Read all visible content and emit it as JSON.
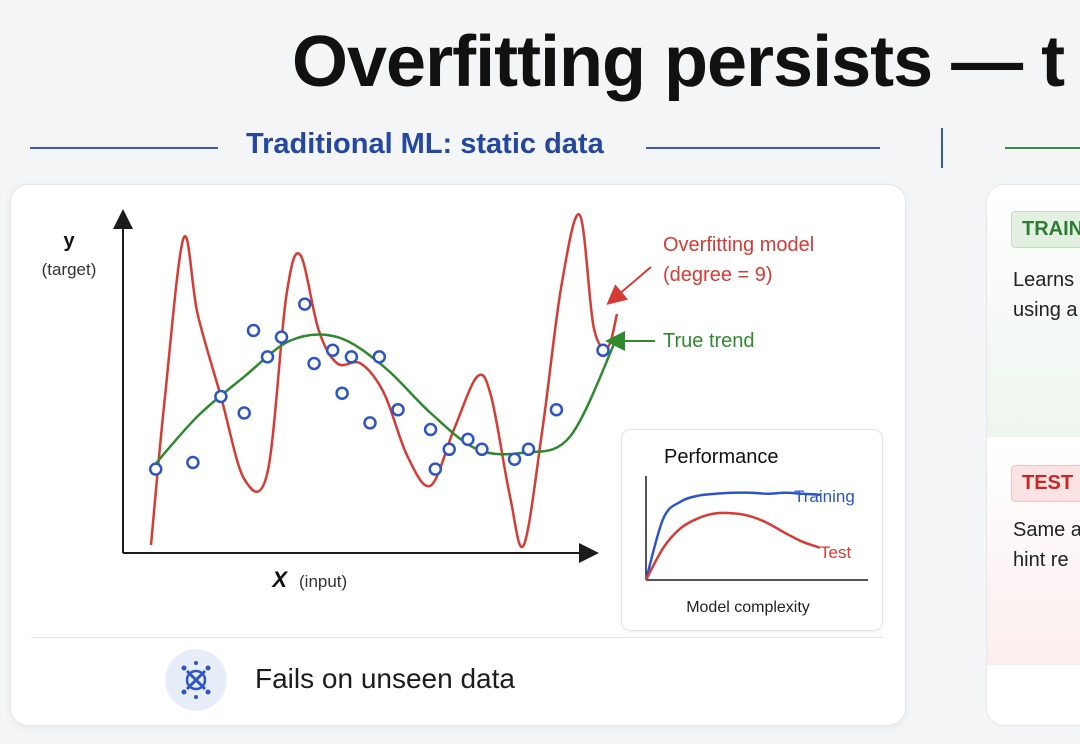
{
  "header": {
    "title": "Overfitting persists — t"
  },
  "left_section": {
    "heading": "Traditional ML: static data",
    "footer_text": "Fails on unseen data",
    "footer_icon": "scatter-x-icon"
  },
  "right_section": {
    "train_badge": "TRAIN",
    "train_line1": "Learns",
    "train_line2": "using a",
    "test_badge": "TEST",
    "test_line1": "Same a",
    "test_line2": "hint re"
  },
  "colors": {
    "overfit": "#d83a34",
    "trend": "#2f8a2f",
    "heading_blue": "#2447a0",
    "training_curve": "#2d55c8",
    "test_curve": "#d83a34"
  },
  "chart_data": [
    {
      "type": "scatter",
      "title": "",
      "xlabel": "X",
      "xlabel_note": "(input)",
      "ylabel": "y",
      "ylabel_note": "(target)",
      "annotations": {
        "overfit_line1": "Overfitting model",
        "overfit_line2": "(degree = 9)",
        "trend": "True trend"
      },
      "xlim": [
        0,
        10
      ],
      "ylim": [
        0,
        10
      ],
      "points": [
        {
          "x": 0.1,
          "y": 2.3
        },
        {
          "x": 0.9,
          "y": 2.5
        },
        {
          "x": 1.5,
          "y": 4.5
        },
        {
          "x": 2.0,
          "y": 4.0
        },
        {
          "x": 2.2,
          "y": 6.5
        },
        {
          "x": 2.5,
          "y": 5.7
        },
        {
          "x": 2.8,
          "y": 6.3
        },
        {
          "x": 3.3,
          "y": 7.3
        },
        {
          "x": 3.5,
          "y": 5.5
        },
        {
          "x": 3.9,
          "y": 5.9
        },
        {
          "x": 4.1,
          "y": 4.6
        },
        {
          "x": 4.3,
          "y": 5.7
        },
        {
          "x": 4.7,
          "y": 3.7
        },
        {
          "x": 4.9,
          "y": 5.7
        },
        {
          "x": 5.3,
          "y": 4.1
        },
        {
          "x": 6.0,
          "y": 3.5
        },
        {
          "x": 6.1,
          "y": 2.3
        },
        {
          "x": 6.4,
          "y": 2.9
        },
        {
          "x": 6.8,
          "y": 3.2
        },
        {
          "x": 7.1,
          "y": 2.9
        },
        {
          "x": 7.8,
          "y": 2.6
        },
        {
          "x": 8.1,
          "y": 2.9
        },
        {
          "x": 8.7,
          "y": 4.1
        },
        {
          "x": 9.7,
          "y": 5.9
        }
      ],
      "series": [
        {
          "name": "True trend",
          "x": [
            0.0,
            1.0,
            2.0,
            3.0,
            4.0,
            5.0,
            6.0,
            7.0,
            8.0,
            9.0,
            10.0
          ],
          "y": [
            2.3,
            3.9,
            5.1,
            6.2,
            6.3,
            5.4,
            4.0,
            2.9,
            2.8,
            3.3,
            6.3
          ]
        },
        {
          "name": "Overfitting model (degree = 9)",
          "x": [
            0.0,
            0.3,
            0.7,
            1.0,
            1.5,
            2.0,
            2.5,
            2.9,
            3.2,
            3.6,
            4.0,
            4.5,
            5.0,
            5.5,
            6.0,
            6.5,
            7.0,
            7.3,
            7.7,
            8.0,
            8.4,
            8.8,
            9.2,
            9.5,
            9.8,
            10.0
          ],
          "y": [
            0.0,
            4.5,
            9.3,
            7.0,
            4.5,
            2.0,
            2.2,
            7.5,
            8.8,
            6.5,
            5.5,
            5.5,
            4.6,
            2.7,
            1.8,
            3.5,
            5.1,
            4.5,
            1.5,
            0.0,
            3.5,
            7.8,
            10.0,
            6.6,
            6.0,
            7.0
          ]
        }
      ]
    },
    {
      "type": "line",
      "title": "Performance",
      "xlabel": "Model complexity",
      "ylabel": "",
      "series": [
        {
          "name": "Training",
          "x": [
            0,
            1,
            2,
            3,
            4,
            5,
            6,
            7,
            8,
            9,
            10
          ],
          "y": [
            0.0,
            6.3,
            8.0,
            8.6,
            8.8,
            8.9,
            8.9,
            8.8,
            8.9,
            8.8,
            8.7
          ]
        },
        {
          "name": "Test",
          "x": [
            0,
            1,
            2,
            3,
            4,
            5,
            6,
            7,
            8,
            9,
            10
          ],
          "y": [
            0.0,
            3.3,
            5.3,
            6.3,
            6.8,
            6.8,
            6.5,
            5.8,
            4.8,
            3.9,
            3.3
          ]
        }
      ]
    }
  ]
}
